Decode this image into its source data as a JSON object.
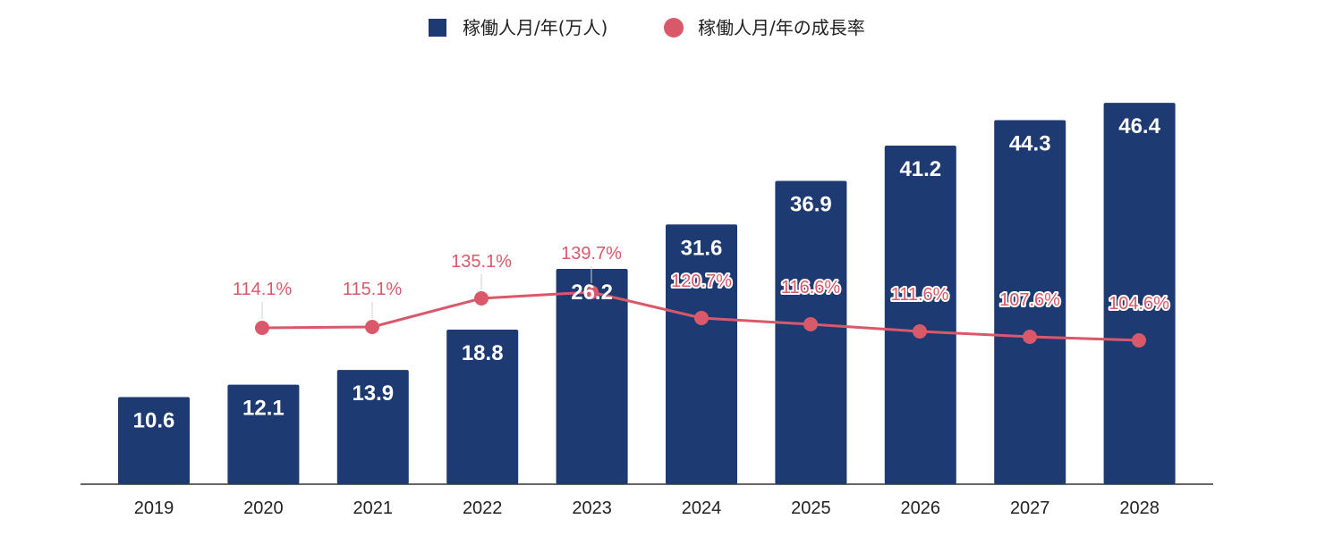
{
  "chart_data": {
    "type": "bar",
    "categories": [
      "2019",
      "2020",
      "2021",
      "2022",
      "2023",
      "2024",
      "2025",
      "2026",
      "2027",
      "2028"
    ],
    "series": [
      {
        "name": "稼働人月/年(万人)",
        "type": "bar",
        "color": "#1e3a73",
        "values": [
          10.6,
          12.1,
          13.9,
          18.8,
          26.2,
          31.6,
          36.9,
          41.2,
          44.3,
          46.4
        ],
        "labels": [
          "10.6",
          "12.1",
          "13.9",
          "18.8",
          "26.2",
          "31.6",
          "36.9",
          "41.2",
          "44.3",
          "46.4"
        ]
      },
      {
        "name": "稼働人月/年の成長率",
        "type": "line",
        "color": "#d9596b",
        "values": [
          null,
          114.1,
          115.1,
          135.1,
          139.7,
          120.7,
          116.6,
          111.6,
          107.6,
          104.6
        ],
        "labels": [
          null,
          "114.1%",
          "115.1%",
          "135.1%",
          "139.7%",
          "120.7%",
          "116.6%",
          "111.6%",
          "107.6%",
          "104.6%"
        ]
      }
    ],
    "bar_axis_range": [
      0,
      50
    ],
    "rate_axis_range": [
      35,
      215
    ],
    "grid": false,
    "legend_position": "top-center"
  }
}
